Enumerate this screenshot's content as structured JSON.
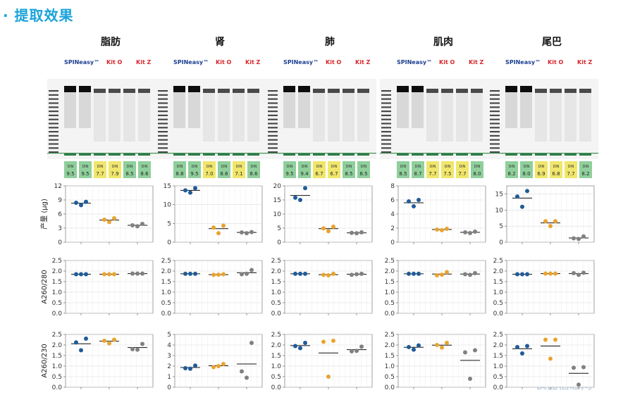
{
  "title": "· 提取效果",
  "brands": {
    "spin": "SPINeasy™",
    "kit_o": "Kit O",
    "kit_z": "Kit Z"
  },
  "din_label": "DIN",
  "watermark": "仪器信息网",
  "colors": {
    "spin": "#1f5b99",
    "kit_o": "#e9a32f",
    "kit_z": "#808080",
    "din_green": "#8fcf9b",
    "din_yellow": "#f0e66b",
    "title": "#1aa3d9"
  },
  "groups": [
    "SPINeasy™",
    "Kit O",
    "Kit Z"
  ],
  "din_rows": [
    [
      "9.5",
      "9.5",
      "7.7",
      "7.9",
      "8.5",
      "8.6"
    ],
    [
      "8.8",
      "9.5",
      "7.0",
      "8.6",
      "7.1",
      "8.6"
    ],
    [
      "9.5",
      "9.4",
      "6.7",
      "6.7",
      "8.5",
      "8.5"
    ],
    [
      "8.5",
      "8.7",
      "7.7",
      "7.5",
      "7.7",
      "8.0"
    ],
    [
      "8.2",
      "8.0",
      "6.9",
      "6.8",
      "7.7",
      "8.2"
    ]
  ],
  "din_colors": [
    [
      "g",
      "g",
      "y",
      "y",
      "g",
      "g"
    ],
    [
      "g",
      "g",
      "y",
      "g",
      "y",
      "g"
    ],
    [
      "g",
      "g",
      "y",
      "y",
      "g",
      "g"
    ],
    [
      "g",
      "g",
      "y",
      "y",
      "y",
      "g"
    ],
    [
      "g",
      "g",
      "y",
      "y",
      "y",
      "g"
    ]
  ],
  "row_labels": [
    "产量 (μg)",
    "A260/280",
    "A260/230"
  ],
  "chart_data": [
    {
      "type": "scatter",
      "title": "脂肪",
      "ylim": [
        0,
        12
      ],
      "yticks": [
        0,
        3,
        6,
        9,
        12
      ],
      "ylabel": "产量 (μg)",
      "series": [
        {
          "name": "SPINeasy™",
          "values": [
            8.4,
            7.9,
            8.6
          ],
          "mean": 8.3
        },
        {
          "name": "Kit O",
          "values": [
            4.8,
            4.3,
            5.1
          ],
          "mean": 4.7
        },
        {
          "name": "Kit Z",
          "values": [
            3.6,
            3.4,
            3.9
          ],
          "mean": 3.6
        }
      ]
    },
    {
      "type": "scatter",
      "title": "肾",
      "ylim": [
        0,
        15
      ],
      "yticks": [
        0,
        5,
        10,
        15
      ],
      "ylabel": "",
      "series": [
        {
          "name": "SPINeasy™",
          "values": [
            13.8,
            13.2,
            14.4
          ],
          "mean": 13.8
        },
        {
          "name": "Kit O",
          "values": [
            3.9,
            2.4,
            4.4
          ],
          "mean": 3.6
        },
        {
          "name": "Kit Z",
          "values": [
            2.6,
            2.4,
            2.7
          ],
          "mean": 2.6
        }
      ]
    },
    {
      "type": "scatter",
      "title": "肺",
      "ylim": [
        0,
        20
      ],
      "yticks": [
        0,
        5,
        10,
        15,
        20
      ],
      "ylabel": "",
      "series": [
        {
          "name": "SPINeasy™",
          "values": [
            15.8,
            15.0,
            19.2
          ],
          "mean": 16.6
        },
        {
          "name": "Kit O",
          "values": [
            4.9,
            3.9,
            5.5
          ],
          "mean": 4.8
        },
        {
          "name": "Kit Z",
          "values": [
            3.3,
            3.2,
            3.5
          ],
          "mean": 3.3
        }
      ]
    },
    {
      "type": "scatter",
      "title": "肌肉",
      "ylim": [
        0,
        8
      ],
      "yticks": [
        0,
        2,
        4,
        6,
        8
      ],
      "ylabel": "",
      "series": [
        {
          "name": "SPINeasy™",
          "values": [
            5.8,
            5.1,
            6.0
          ],
          "mean": 5.6
        },
        {
          "name": "Kit O",
          "values": [
            1.8,
            1.7,
            1.9
          ],
          "mean": 1.8
        },
        {
          "name": "Kit Z",
          "values": [
            1.4,
            1.3,
            1.5
          ],
          "mean": 1.4
        }
      ]
    },
    {
      "type": "scatter",
      "title": "尾巴",
      "ylim": [
        0,
        17.5
      ],
      "yticks": [
        0,
        5,
        10,
        15
      ],
      "ylabel": "",
      "series": [
        {
          "name": "SPINeasy™",
          "values": [
            14.2,
            11.0,
            15.9
          ],
          "mean": 13.7
        },
        {
          "name": "Kit O",
          "values": [
            6.5,
            5.0,
            6.5
          ],
          "mean": 6.0
        },
        {
          "name": "Kit Z",
          "values": [
            1.2,
            1.0,
            1.8
          ],
          "mean": 1.3
        }
      ]
    },
    {
      "type": "scatter",
      "title": "脂肪",
      "ylim": [
        0,
        2.5
      ],
      "yticks": [
        0.0,
        0.5,
        1.0,
        1.5,
        2.0,
        2.5
      ],
      "ylabel": "A260/280",
      "series": [
        {
          "name": "SPINeasy™",
          "values": [
            1.85,
            1.85,
            1.85
          ],
          "mean": 1.85
        },
        {
          "name": "Kit O",
          "values": [
            1.85,
            1.85,
            1.85
          ],
          "mean": 1.85
        },
        {
          "name": "Kit Z",
          "values": [
            1.88,
            1.88,
            1.88
          ],
          "mean": 1.88
        }
      ]
    },
    {
      "type": "scatter",
      "title": "肾",
      "ylim": [
        0,
        2.5
      ],
      "yticks": [
        0.0,
        0.5,
        1.0,
        1.5,
        2.0,
        2.5
      ],
      "ylabel": "",
      "series": [
        {
          "name": "SPINeasy™",
          "values": [
            1.87,
            1.87,
            1.87
          ],
          "mean": 1.87
        },
        {
          "name": "Kit O",
          "values": [
            1.82,
            1.83,
            1.85
          ],
          "mean": 1.83
        },
        {
          "name": "Kit Z",
          "values": [
            1.85,
            1.87,
            2.05
          ],
          "mean": 1.92
        }
      ]
    },
    {
      "type": "scatter",
      "title": "肺",
      "ylim": [
        0,
        2.5
      ],
      "yticks": [
        0.0,
        0.5,
        1.0,
        1.5,
        2.0,
        2.5
      ],
      "ylabel": "",
      "series": [
        {
          "name": "SPINeasy™",
          "values": [
            1.87,
            1.87,
            1.87
          ],
          "mean": 1.87
        },
        {
          "name": "Kit O",
          "values": [
            1.82,
            1.8,
            1.87
          ],
          "mean": 1.83
        },
        {
          "name": "Kit Z",
          "values": [
            1.82,
            1.85,
            1.87
          ],
          "mean": 1.85
        }
      ]
    },
    {
      "type": "scatter",
      "title": "肌肉",
      "ylim": [
        0,
        2.5
      ],
      "yticks": [
        0.0,
        0.5,
        1.0,
        1.5,
        2.0,
        2.5
      ],
      "ylabel": "",
      "series": [
        {
          "name": "SPINeasy™",
          "values": [
            1.87,
            1.87,
            1.87
          ],
          "mean": 1.87
        },
        {
          "name": "Kit O",
          "values": [
            1.8,
            1.83,
            1.95
          ],
          "mean": 1.86
        },
        {
          "name": "Kit Z",
          "values": [
            1.85,
            1.82,
            1.9
          ],
          "mean": 1.86
        }
      ]
    },
    {
      "type": "scatter",
      "title": "尾巴",
      "ylim": [
        0,
        2.5
      ],
      "yticks": [
        0.0,
        0.5,
        1.0,
        1.5,
        2.0,
        2.5
      ],
      "ylabel": "",
      "series": [
        {
          "name": "SPINeasy™",
          "values": [
            1.85,
            1.85,
            1.85
          ],
          "mean": 1.85
        },
        {
          "name": "Kit O",
          "values": [
            1.88,
            1.88,
            1.88
          ],
          "mean": 1.88
        },
        {
          "name": "Kit Z",
          "values": [
            1.9,
            1.82,
            1.92
          ],
          "mean": 1.88
        }
      ]
    },
    {
      "type": "scatter",
      "title": "脂肪",
      "ylim": [
        0,
        2.5
      ],
      "yticks": [
        0.0,
        0.5,
        1.0,
        1.5,
        2.0,
        2.5
      ],
      "ylabel": "A260/230",
      "series": [
        {
          "name": "SPINeasy™",
          "values": [
            2.12,
            1.75,
            2.3
          ],
          "mean": 2.06
        },
        {
          "name": "Kit O",
          "values": [
            2.2,
            2.08,
            2.25
          ],
          "mean": 2.18
        },
        {
          "name": "Kit Z",
          "values": [
            1.8,
            1.78,
            2.05
          ],
          "mean": 1.88
        }
      ]
    },
    {
      "type": "scatter",
      "title": "肾",
      "ylim": [
        0,
        5
      ],
      "yticks": [
        0,
        1,
        2,
        3,
        4,
        5
      ],
      "ylabel": "",
      "series": [
        {
          "name": "SPINeasy™",
          "values": [
            1.8,
            1.75,
            2.05
          ],
          "mean": 1.87
        },
        {
          "name": "Kit O",
          "values": [
            1.9,
            2.0,
            2.2
          ],
          "mean": 2.03
        },
        {
          "name": "Kit Z",
          "values": [
            1.5,
            0.9,
            4.2
          ],
          "mean": 2.2
        }
      ]
    },
    {
      "type": "scatter",
      "title": "肺",
      "ylim": [
        0,
        2.5
      ],
      "yticks": [
        0.0,
        0.5,
        1.0,
        1.5,
        2.0,
        2.5
      ],
      "ylabel": "",
      "series": [
        {
          "name": "SPINeasy™",
          "values": [
            1.95,
            1.85,
            2.1
          ],
          "mean": 1.97
        },
        {
          "name": "Kit O",
          "values": [
            2.15,
            0.5,
            2.2
          ],
          "mean": 1.62
        },
        {
          "name": "Kit Z",
          "values": [
            1.7,
            1.72,
            1.92
          ],
          "mean": 1.78
        }
      ]
    },
    {
      "type": "scatter",
      "title": "肌肉",
      "ylim": [
        0,
        2.5
      ],
      "yticks": [
        0.0,
        0.5,
        1.0,
        1.5,
        2.0,
        2.5
      ],
      "ylabel": "",
      "series": [
        {
          "name": "SPINeasy™",
          "values": [
            1.9,
            1.78,
            1.98
          ],
          "mean": 1.89
        },
        {
          "name": "Kit O",
          "values": [
            2.0,
            1.88,
            2.1
          ],
          "mean": 1.99
        },
        {
          "name": "Kit Z",
          "values": [
            1.65,
            0.4,
            1.75
          ],
          "mean": 1.27
        }
      ]
    },
    {
      "type": "scatter",
      "title": "尾巴",
      "ylim": [
        0,
        2.5
      ],
      "yticks": [
        0.0,
        0.5,
        1.0,
        1.5,
        2.0,
        2.5
      ],
      "ylabel": "",
      "series": [
        {
          "name": "SPINeasy™",
          "values": [
            1.9,
            1.6,
            1.95
          ],
          "mean": 1.82
        },
        {
          "name": "Kit O",
          "values": [
            2.25,
            1.35,
            2.25
          ],
          "mean": 1.95
        },
        {
          "name": "Kit Z",
          "values": [
            0.92,
            0.12,
            0.95
          ],
          "mean": 0.66
        }
      ]
    }
  ]
}
